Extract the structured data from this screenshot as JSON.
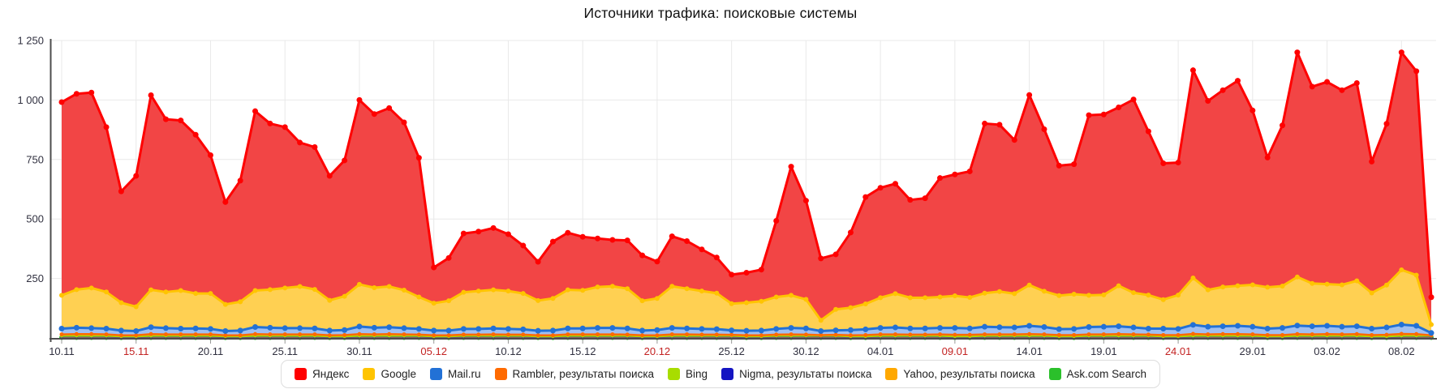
{
  "title": "Источники трафика: поисковые системы",
  "colors": {
    "background": "#ffffff",
    "grid": "#e9e9e9",
    "axis": "#4d4d4d",
    "tick": "#999999",
    "axis_label": "#30303f",
    "weekend_label": "#c32222",
    "title_text": "#111111",
    "legend_border": "#dddddd"
  },
  "chart_data": {
    "type": "area",
    "stacked": true,
    "grid": true,
    "legend_position": "bottom",
    "title": "Источники трафика: поисковые системы",
    "ylim": [
      0,
      1250
    ],
    "n_points": 93,
    "x_range_labels": {
      "first": "10.11",
      "last": "08.02"
    },
    "tick_every": 5,
    "x_ticks": [
      {
        "label": "10.11",
        "weekend": false
      },
      {
        "label": "15.11",
        "weekend": true
      },
      {
        "label": "20.11",
        "weekend": false
      },
      {
        "label": "25.11",
        "weekend": false
      },
      {
        "label": "30.11",
        "weekend": false
      },
      {
        "label": "05.12",
        "weekend": true
      },
      {
        "label": "10.12",
        "weekend": false
      },
      {
        "label": "15.12",
        "weekend": false
      },
      {
        "label": "20.12",
        "weekend": true
      },
      {
        "label": "25.12",
        "weekend": false
      },
      {
        "label": "30.12",
        "weekend": false
      },
      {
        "label": "04.01",
        "weekend": false
      },
      {
        "label": "09.01",
        "weekend": true
      },
      {
        "label": "14.01",
        "weekend": false
      },
      {
        "label": "19.01",
        "weekend": false
      },
      {
        "label": "24.01",
        "weekend": true
      },
      {
        "label": "29.01",
        "weekend": false
      },
      {
        "label": "03.02",
        "weekend": false
      },
      {
        "label": "08.02",
        "weekend": false
      }
    ],
    "y_ticks": [
      {
        "value": 250,
        "label": "250"
      },
      {
        "value": 500,
        "label": "500"
      },
      {
        "value": 750,
        "label": "750"
      },
      {
        "value": 1000,
        "label": "1 000"
      },
      {
        "value": 1250,
        "label": "1 250"
      }
    ],
    "series": [
      {
        "name": "Яндекс",
        "line": "#ff0000",
        "fill": "#f24545",
        "fill_opacity": 1,
        "line_w": 3,
        "marker_r": 3.5,
        "values": [
          812,
          823,
          821,
          693,
          468,
          550,
          818,
          726,
          715,
          667,
          581,
          430,
          509,
          754,
          698,
          676,
          605,
          598,
          523,
          571,
          775,
          730,
          750,
          705,
          585,
          150,
          180,
          247,
          250,
          260,
          239,
          201,
          163,
          239,
          240,
          225,
          204,
          195,
          203,
          191,
          155,
          210,
          200,
          175,
          150,
          122,
          126,
          133,
          320,
          541,
          415,
          260,
          231,
          316,
          449,
          462,
          462,
          411,
          418,
          500,
          510,
          530,
          713,
          701,
          646,
          799,
          681,
          546,
          546,
          757,
          758,
          750,
          812,
          688,
          573,
          557,
          873,
          794,
          827,
          862,
          733,
          545,
          675,
          944,
          827,
          850,
          818,
          831,
          552,
          678,
          914,
          857,
          115
        ]
      },
      {
        "name": "Google",
        "line": "#ffc400",
        "fill": "#ffd052",
        "fill_opacity": 1,
        "line_w": 3,
        "marker_r": 3,
        "values": [
          140,
          160,
          169,
          154,
          117,
          102,
          157,
          152,
          160,
          147,
          149,
          112,
          121,
          153,
          160,
          169,
          175,
          164,
          127,
          142,
          177,
          168,
          171,
          160,
          134,
          115,
          125,
          154,
          159,
          162,
          159,
          151,
          127,
          135,
          162,
          160,
          172,
          175,
          167,
          125,
          133,
          175,
          167,
          159,
          151,
          112,
          118,
          123,
          134,
          137,
          122,
          45,
          88,
          94,
          107,
          127,
          142,
          129,
          129,
          130,
          135,
          130,
          141,
          150,
          142,
          171,
          150,
          141,
          146,
          133,
          134,
          170,
          146,
          141,
          122,
          142,
          197,
          155,
          165,
          168,
          176,
          174,
          176,
          204,
          180,
          175,
          176,
          191,
          150,
          178,
          230,
          213,
          35
        ]
      },
      {
        "name": "Mail.ru",
        "line": "#2271d6",
        "fill": "#8fb4ee",
        "fill_opacity": 0.85,
        "line_w": 3,
        "marker_r": 3.5,
        "values": [
          24,
          27,
          25,
          24,
          20,
          18,
          29,
          26,
          24,
          25,
          23,
          18,
          20,
          30,
          28,
          26,
          26,
          25,
          20,
          21,
          32,
          28,
          29,
          26,
          24,
          20,
          20,
          24,
          24,
          25,
          24,
          22,
          19,
          20,
          25,
          25,
          27,
          27,
          26,
          20,
          22,
          27,
          25,
          24,
          23,
          19,
          19,
          20,
          24,
          27,
          26,
          17,
          19,
          22,
          24,
          27,
          29,
          26,
          26,
          27,
          29,
          27,
          32,
          30,
          29,
          35,
          31,
          25,
          26,
          31,
          32,
          33,
          29,
          25,
          27,
          26,
          38,
          32,
          33,
          35,
          32,
          27,
          30,
          36,
          34,
          35,
          32,
          33,
          27,
          31,
          39,
          35,
          10
        ]
      },
      {
        "name": "Rambler, результаты поиска",
        "line": "#ff6a00",
        "fill": "#ff8534",
        "fill_opacity": 1,
        "line_w": 2.5,
        "marker_r": 2.5,
        "values": [
          7,
          8,
          8,
          7,
          5,
          5,
          8,
          7,
          7,
          7,
          7,
          5,
          5,
          8,
          7,
          7,
          7,
          7,
          5,
          6,
          8,
          7,
          8,
          7,
          6,
          5,
          5,
          6,
          6,
          7,
          6,
          6,
          5,
          5,
          7,
          7,
          7,
          7,
          6,
          5,
          5,
          7,
          7,
          6,
          6,
          5,
          5,
          5,
          6,
          7,
          6,
          4,
          5,
          5,
          6,
          7,
          7,
          6,
          6,
          7,
          7,
          7,
          7,
          7,
          7,
          8,
          7,
          6,
          6,
          7,
          7,
          8,
          7,
          6,
          6,
          6,
          9,
          7,
          8,
          8,
          7,
          6,
          6,
          8,
          7,
          8,
          7,
          8,
          6,
          7,
          9,
          8,
          3
        ]
      },
      {
        "name": "Bing",
        "line": "#a8dd00",
        "fill": "#b9e238",
        "fill_opacity": 1,
        "line_w": 2,
        "marker_r": 2,
        "values": {
          "pattern": [
            3,
            3,
            3,
            3,
            2,
            2,
            3
          ]
        }
      },
      {
        "name": "Nigma, результаты поиска",
        "line": "#1515c2",
        "fill": "#3c3ccd",
        "fill_opacity": 1,
        "line_w": 2,
        "marker_r": 2,
        "values": {
          "pattern": [
            2,
            2,
            2,
            2,
            1.5,
            1.5,
            2
          ]
        }
      },
      {
        "name": "Yahoo, результаты поиска",
        "line": "#ffa800",
        "fill": "#ffb52e",
        "fill_opacity": 1,
        "line_w": 2,
        "marker_r": 2,
        "values": {
          "pattern": [
            1.5,
            1.5,
            1.5,
            1.5,
            1.2,
            1.2,
            1.5
          ]
        }
      },
      {
        "name": "Ask.com Search",
        "line": "#2bc02b",
        "fill": "#47ca47",
        "fill_opacity": 1,
        "line_w": 2.5,
        "marker_r": 3,
        "values": {
          "pattern": [
            1.6,
            1.6,
            1.6,
            1.6,
            1.4,
            1.4,
            1.6
          ]
        }
      }
    ]
  }
}
